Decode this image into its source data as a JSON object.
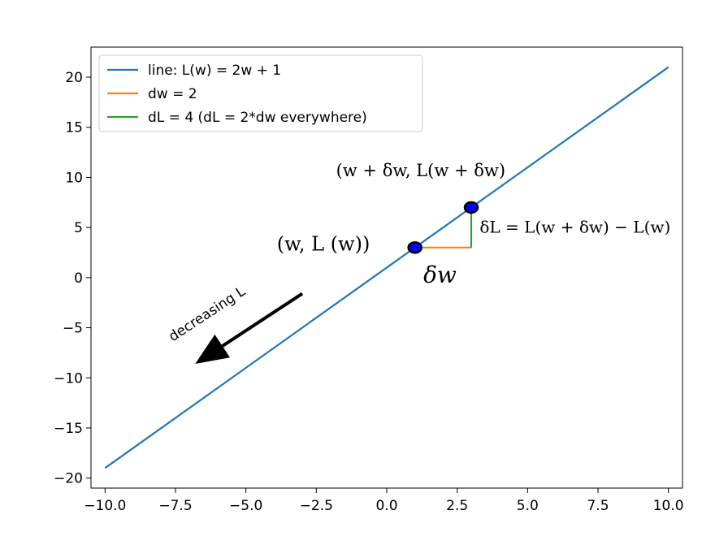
{
  "chart_data": {
    "type": "line",
    "title": "",
    "xlabel": "",
    "ylabel": "",
    "xlim": [
      -10.5,
      10.5
    ],
    "ylim": [
      -21,
      23
    ],
    "grid": false,
    "legend_position": "top-left",
    "x_ticks": [
      -10.0,
      -7.5,
      -5.0,
      -2.5,
      0.0,
      2.5,
      5.0,
      7.5,
      10.0
    ],
    "x_tick_labels": [
      "−10.0",
      "−7.5",
      "−5.0",
      "−2.5",
      "0.0",
      "2.5",
      "5.0",
      "7.5",
      "10.0"
    ],
    "y_ticks": [
      20,
      15,
      10,
      5,
      0,
      -5,
      -10,
      -15,
      -20
    ],
    "y_tick_labels": [
      "20",
      "15",
      "10",
      "5",
      "0",
      "−5",
      "−10",
      "−15",
      "−20"
    ],
    "series": [
      {
        "name": "line: L(w) = 2w + 1",
        "color": "#1f77b4",
        "x": [
          -10,
          10
        ],
        "y": [
          -19,
          21
        ]
      },
      {
        "name": "dw = 2",
        "color": "#ff7f0e",
        "x": [
          1,
          3
        ],
        "y": [
          3,
          3
        ]
      },
      {
        "name": "dL = 4 (dL = 2*dw everywhere)",
        "color": "#2ca02c",
        "x": [
          3,
          3
        ],
        "y": [
          3,
          7
        ]
      }
    ],
    "points": [
      {
        "x": 1,
        "y": 3,
        "color": "#0000ff"
      },
      {
        "x": 3,
        "y": 7,
        "color": "#0000ff"
      }
    ],
    "annotations": [
      {
        "id": "point1",
        "text": "(w, L (w))",
        "x": -3.9,
        "y": 2.7
      },
      {
        "id": "point2",
        "text": "(w + δw, L(w + δw)",
        "x": -1.8,
        "y": 10.1
      },
      {
        "id": "dw",
        "text": "δw",
        "x": 1.3,
        "y": -0.5
      },
      {
        "id": "dL",
        "text": "δL = L(w + δw) − L(w)",
        "x": 3.3,
        "y": 4.5
      }
    ],
    "arrow": {
      "text": "decreasing L",
      "from": [
        -3,
        -1.6
      ],
      "to": [
        -6.8,
        -8.6
      ],
      "text_pos": [
        -7.6,
        -6.4
      ]
    }
  }
}
